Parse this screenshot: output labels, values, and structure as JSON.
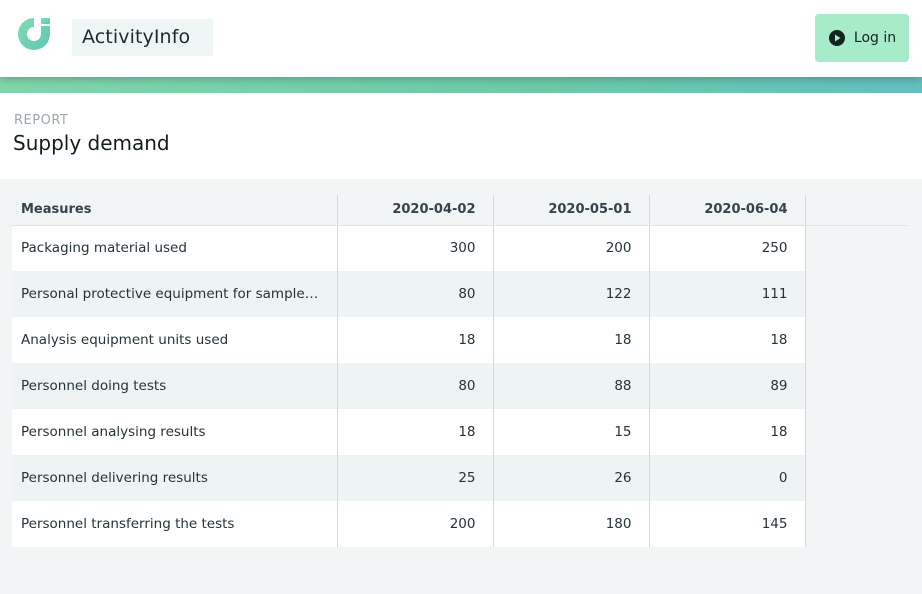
{
  "header": {
    "brand": "ActivityInfo",
    "login_label": "Log in",
    "accent": "#a6ecc8"
  },
  "report": {
    "label": "REPORT",
    "title": "Supply demand"
  },
  "table": {
    "measure_header": "Measures",
    "columns": [
      "2020-04-02",
      "2020-05-01",
      "2020-06-04"
    ],
    "rows": [
      {
        "label": "Packaging material used",
        "values": [
          "300",
          "200",
          "250"
        ]
      },
      {
        "label": "Personal protective equipment for sampler...",
        "values": [
          "80",
          "122",
          "111"
        ]
      },
      {
        "label": "Analysis equipment units used",
        "values": [
          "18",
          "18",
          "18"
        ]
      },
      {
        "label": "Personnel doing tests",
        "values": [
          "80",
          "88",
          "89"
        ]
      },
      {
        "label": "Personnel analysing results",
        "values": [
          "18",
          "15",
          "18"
        ]
      },
      {
        "label": "Personnel delivering results",
        "values": [
          "25",
          "26",
          "0"
        ]
      },
      {
        "label": "Personnel transferring the tests",
        "values": [
          "200",
          "180",
          "145"
        ]
      }
    ]
  }
}
